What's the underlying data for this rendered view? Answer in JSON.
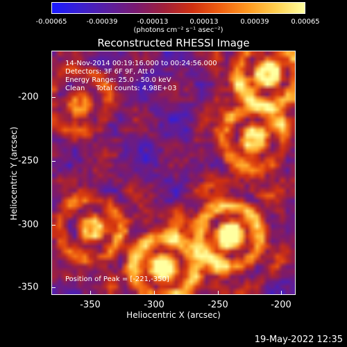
{
  "colorbar": {
    "ticks": [
      "-0.00065",
      "-0.00039",
      "-0.00013",
      "0.00013",
      "0.00039",
      "0.00065"
    ],
    "units_text": "(photons cm⁻² s⁻¹ asec⁻²)"
  },
  "title": "Reconstructed RHESSI Image",
  "info": {
    "time_range": "14-Nov-2014 00:19:16.000 to 00:24:56.000",
    "detectors": "Detectors: 3F 6F 9F, Att 0",
    "energy": "Energy Range: 25.0 - 50.0 keV",
    "clean": "Clean     Total counts: 4.98E+03"
  },
  "peak": "Position of Peak = [-221,-350]",
  "axes": {
    "xlabel": "Heliocentric X (arcsec)",
    "ylabel": "Heliocentric Y (arcsec)",
    "x_ticks": [
      "-350",
      "-300",
      "-250",
      "-200"
    ],
    "y_ticks": [
      "-200",
      "-250",
      "-300",
      "-350"
    ],
    "x_range": [
      -380,
      -188
    ],
    "y_range": [
      -362,
      -170
    ]
  },
  "footer_date": "19-May-2022 12:35",
  "colormap": [
    "#1a1aff",
    "#3a20d0",
    "#5a1ea0",
    "#7a1a70",
    "#a0203a",
    "#d03010",
    "#f06010",
    "#ff9a20",
    "#ffd050",
    "#ffffa0"
  ]
}
